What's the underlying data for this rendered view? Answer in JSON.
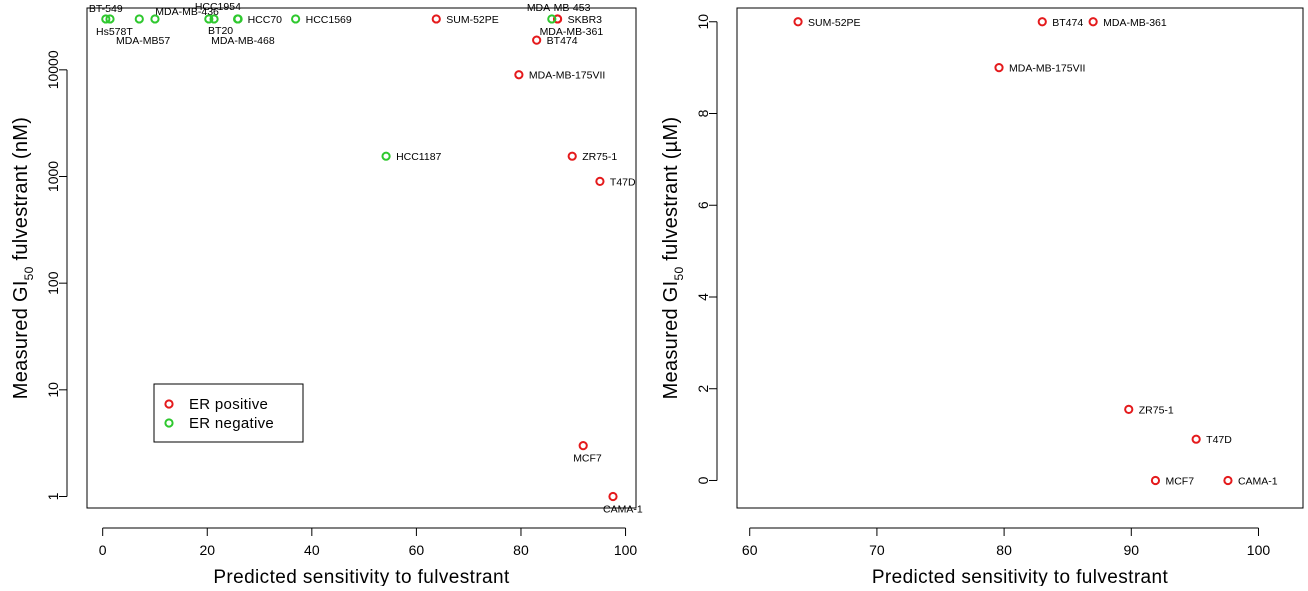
{
  "chart_data": [
    {
      "type": "scatter",
      "xlabel": "Predicted sensitivity to fulvestrant",
      "ylabel": {
        "pre": "Measured GI",
        "sub": "50",
        "post": " fulvestrant (nM)"
      },
      "xlim": [
        -3,
        102
      ],
      "ylim": [
        0.78,
        38000
      ],
      "y_scale": "log",
      "xticks": [
        0,
        20,
        40,
        60,
        80,
        100
      ],
      "yticks": [
        1,
        10,
        100,
        1000,
        10000
      ],
      "ytick_labels": [
        "1",
        "10",
        "100",
        "1000",
        "10000"
      ],
      "legend": {
        "placement": "bottom-left",
        "entries": [
          {
            "label": "ER positive",
            "color": "#e41a1c"
          },
          {
            "label": "ER negative",
            "color": "#2ec82e"
          }
        ]
      },
      "series": [
        {
          "name": "ER positive",
          "color": "#e41a1c",
          "points": [
            {
              "label": "SUM-52PE",
              "x": 63.8,
              "y": 30000
            },
            {
              "label": "SKBR3",
              "x": 87.0,
              "y": 30000
            },
            {
              "label": "MDA-MB-361",
              "x": 87.0,
              "y": 30000
            },
            {
              "label": "BT474",
              "x": 83.0,
              "y": 19000
            },
            {
              "label": "MDA-MB-175VII",
              "x": 79.6,
              "y": 9000
            },
            {
              "label": "ZR75-1",
              "x": 89.8,
              "y": 1550
            },
            {
              "label": "T47D",
              "x": 95.1,
              "y": 900
            },
            {
              "label": "MCF7",
              "x": 91.9,
              "y": 3
            },
            {
              "label": "CAMA-1",
              "x": 97.6,
              "y": 1
            }
          ]
        },
        {
          "name": "ER negative",
          "color": "#2ec82e",
          "points": [
            {
              "label": "BT-549",
              "x": 0.6,
              "y": 30000
            },
            {
              "label": "Hs578T",
              "x": 1.4,
              "y": 30000
            },
            {
              "label": "MDA-MB-436",
              "x": 7.0,
              "y": 30000
            },
            {
              "label": "MDA-MB57",
              "x": 10.0,
              "y": 30000
            },
            {
              "label": "HCC1954",
              "x": 20.3,
              "y": 30000
            },
            {
              "label": "BT20",
              "x": 21.3,
              "y": 30000
            },
            {
              "label": "HCC70",
              "x": 25.8,
              "y": 30000
            },
            {
              "label": "MDA-MB-468",
              "x": 25.9,
              "y": 30000
            },
            {
              "label": "HCC1569",
              "x": 36.9,
              "y": 30000
            },
            {
              "label": "MDA-MB-453",
              "x": 85.9,
              "y": 30000
            },
            {
              "label": "HCC1187",
              "x": 54.2,
              "y": 1550
            }
          ]
        }
      ]
    },
    {
      "type": "scatter",
      "xlabel": "Predicted sensitivity to fulvestrant",
      "ylabel": {
        "pre": "Measured GI",
        "sub": "50",
        "post": " fulvestrant (µM)"
      },
      "xlim": [
        59,
        103.5
      ],
      "ylim": [
        -0.6,
        10.3
      ],
      "y_scale": "linear",
      "xticks": [
        60,
        70,
        80,
        90,
        100
      ],
      "yticks": [
        0,
        2,
        4,
        6,
        8,
        10
      ],
      "ytick_labels": [
        "0",
        "2",
        "4",
        "6",
        "8",
        "10"
      ],
      "series": [
        {
          "name": "ER positive",
          "color": "#e41a1c",
          "points": [
            {
              "label": "SUM-52PE",
              "x": 63.8,
              "y": 10
            },
            {
              "label": "BT474",
              "x": 83.0,
              "y": 10
            },
            {
              "label": "MDA-MB-361",
              "x": 87.0,
              "y": 10
            },
            {
              "label": "MDA-MB-175VII",
              "x": 79.6,
              "y": 9
            },
            {
              "label": "ZR75-1",
              "x": 89.8,
              "y": 1.55
            },
            {
              "label": "T47D",
              "x": 95.1,
              "y": 0.9
            },
            {
              "label": "MCF7",
              "x": 91.9,
              "y": 0
            },
            {
              "label": "CAMA-1",
              "x": 97.6,
              "y": 0
            }
          ]
        }
      ]
    }
  ]
}
